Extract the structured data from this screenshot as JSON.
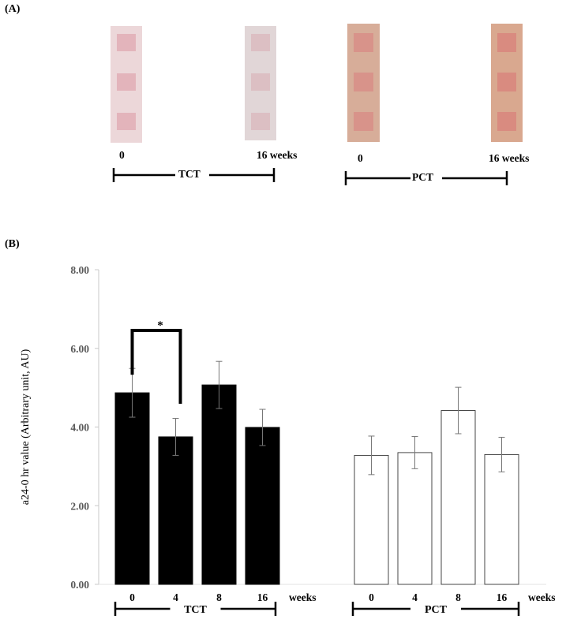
{
  "panelA": {
    "label": "(A)",
    "tct": {
      "start_label": "0",
      "end_label": "16 weeks",
      "group_label": "TCT",
      "strip_colors": [
        "#ecd7d9",
        "#e1d6d7"
      ]
    },
    "pct": {
      "start_label": "0",
      "end_label": "16 weeks",
      "group_label": "PCT",
      "strip_colors": [
        "#d7ad99",
        "#d9a88f"
      ]
    }
  },
  "panelB": {
    "label": "(B)"
  },
  "chart_data": {
    "type": "bar",
    "ylabel": "a24-0 hr value (Arbitrary unit, AU)",
    "ylim": [
      0,
      8
    ],
    "yticks": [
      "0.00",
      "2.00",
      "4.00",
      "6.00",
      "8.00"
    ],
    "x_unit_label": "weeks",
    "significance_marker": "*",
    "groups": [
      {
        "name": "TCT",
        "fill": "#000000",
        "stroke": "#000000",
        "categories": [
          "0",
          "4",
          "8",
          "16"
        ],
        "values": [
          4.87,
          3.75,
          5.07,
          3.99
        ],
        "errors": [
          0.62,
          0.47,
          0.6,
          0.46
        ]
      },
      {
        "name": "PCT",
        "fill": "#ffffff",
        "stroke": "#333333",
        "categories": [
          "0",
          "4",
          "8",
          "16"
        ],
        "values": [
          3.28,
          3.35,
          4.42,
          3.3
        ],
        "errors": [
          0.49,
          0.41,
          0.59,
          0.44
        ]
      }
    ]
  }
}
